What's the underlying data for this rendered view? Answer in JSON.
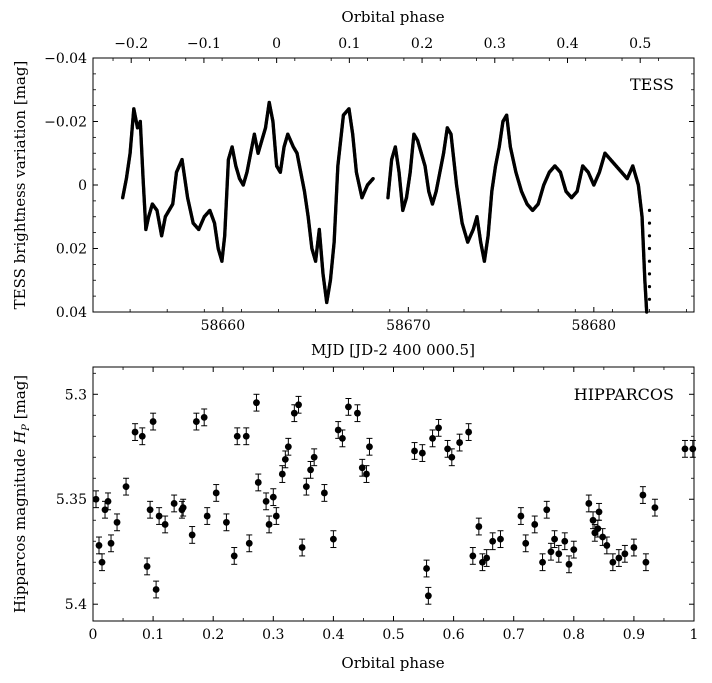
{
  "chart_data": [
    {
      "type": "scatter",
      "panel_label": "TESS",
      "xlabel": "MJD [JD-2 400 000.5]",
      "ylabel": "TESS brightness variation [mag]",
      "top_axis_label": "Orbital phase",
      "xlim": [
        58653.0,
        58685.4
      ],
      "ylim": [
        0.04,
        -0.04
      ],
      "y_inverted": true,
      "x_ticks": [
        58660,
        58670,
        58680
      ],
      "x_tick_labels": [
        "58660",
        "58670",
        "58680"
      ],
      "y_ticks": [
        -0.04,
        -0.02,
        0,
        0.02,
        0.04
      ],
      "y_tick_labels": [
        "−0.04",
        "−0.02",
        "0",
        "0.02",
        "0.04"
      ],
      "top_ticks": [
        -0.2,
        -0.1,
        0,
        0.1,
        0.2,
        0.3,
        0.4,
        0.5
      ],
      "top_tick_labels": [
        "−0.2",
        "−0.1",
        "0",
        "0.1",
        "0.2",
        "0.3",
        "0.4",
        "0.5"
      ],
      "top_phase_reference": {
        "mjd_at_phase_0": 58662.9,
        "mjd_at_phase_0.5": 58682.5
      },
      "series": [
        {
          "marker": "small-dot",
          "color": "#000000",
          "segments": [
            {
              "x": [
                58654.6,
                58654.8,
                58655.0,
                58655.2,
                58655.4,
                58655.55,
                58655.7,
                58655.85,
                58656.0,
                58656.2,
                58656.45,
                58656.7,
                58656.9,
                58657.1,
                58657.3,
                58657.5,
                58657.8,
                58658.1,
                58658.4,
                58658.7,
                58659.0,
                58659.3,
                58659.55,
                58659.75,
                58659.95,
                58660.1,
                58660.3,
                58660.5,
                58660.7,
                58660.9,
                58661.1,
                58661.3,
                58661.5,
                58661.7,
                58661.9,
                58662.1,
                58662.3,
                58662.5,
                58662.7,
                58662.9,
                58663.1,
                58663.3,
                58663.5,
                58663.8,
                58664.0,
                58664.2,
                58664.4,
                58664.6,
                58664.8,
                58665.0,
                58665.2,
                58665.4,
                58665.6,
                58665.8,
                58666.0,
                58666.2,
                58666.5,
                58666.8,
                58667.0,
                58667.2,
                58667.5,
                58667.8,
                58668.1
              ],
              "y": [
                0.004,
                -0.002,
                -0.01,
                -0.024,
                -0.018,
                -0.02,
                -0.002,
                0.014,
                0.01,
                0.006,
                0.008,
                0.016,
                0.01,
                0.008,
                0.006,
                -0.004,
                -0.008,
                0.004,
                0.012,
                0.014,
                0.01,
                0.008,
                0.012,
                0.02,
                0.024,
                0.016,
                -0.008,
                -0.012,
                -0.006,
                -0.002,
                0.0,
                -0.004,
                -0.01,
                -0.016,
                -0.01,
                -0.014,
                -0.018,
                -0.026,
                -0.02,
                -0.006,
                -0.004,
                -0.012,
                -0.016,
                -0.012,
                -0.01,
                -0.004,
                0.002,
                0.01,
                0.02,
                0.024,
                0.014,
                0.028,
                0.037,
                0.03,
                0.018,
                -0.006,
                -0.022,
                -0.024,
                -0.016,
                -0.004,
                0.004,
                0.0,
                -0.002
              ]
            },
            {
              "x": [
                58668.9,
                58669.1,
                58669.3,
                58669.5,
                58669.7,
                58669.9,
                58670.1,
                58670.3,
                58670.5,
                58670.7,
                58670.9,
                58671.1,
                58671.3,
                58671.5,
                58671.7,
                58671.9,
                58672.1,
                58672.3,
                58672.6,
                58672.9,
                58673.2,
                58673.5,
                58673.7,
                58673.9,
                58674.1,
                58674.3,
                58674.5,
                58674.7,
                58674.9,
                58675.1,
                58675.3,
                58675.5,
                58675.8,
                58676.1,
                58676.4,
                58676.7,
                58677.0,
                58677.3,
                58677.6,
                58677.9,
                58678.2,
                58678.5,
                58678.8,
                58679.1,
                58679.4,
                58679.7,
                58680.0,
                58680.3,
                58680.6,
                58680.9,
                58681.2,
                58681.5,
                58681.8,
                58682.1,
                58682.4,
                58682.6,
                58682.75,
                58682.85
              ],
              "y": [
                0.004,
                -0.008,
                -0.012,
                -0.004,
                0.008,
                0.004,
                -0.004,
                -0.016,
                -0.014,
                -0.01,
                -0.006,
                0.002,
                0.006,
                0.002,
                -0.004,
                -0.01,
                -0.018,
                -0.016,
                0.0,
                0.012,
                0.018,
                0.014,
                0.01,
                0.018,
                0.024,
                0.016,
                0.002,
                -0.006,
                -0.012,
                -0.02,
                -0.022,
                -0.012,
                -0.004,
                0.002,
                0.006,
                0.008,
                0.006,
                0.0,
                -0.004,
                -0.006,
                -0.004,
                0.002,
                0.004,
                0.002,
                -0.006,
                -0.004,
                0.0,
                -0.004,
                -0.01,
                -0.008,
                -0.006,
                -0.004,
                -0.002,
                -0.006,
                0.0,
                0.01,
                0.03,
                0.04
              ]
            },
            {
              "x": [
                58683.0,
                58683.0,
                58683.0,
                58683.0,
                58683.0,
                58683.0,
                58683.0,
                58683.0
              ],
              "y": [
                0.008,
                0.012,
                0.016,
                0.02,
                0.024,
                0.028,
                0.032,
                0.036
              ]
            }
          ]
        }
      ]
    },
    {
      "type": "scatter",
      "panel_label": "HIPPARCOS",
      "xlabel": "Orbital phase",
      "ylabel": "Hipparcos magnitude H_P [mag]",
      "ylabel_main": "Hipparcos magnitude ",
      "ylabel_var": "H",
      "ylabel_sub": "P",
      "ylabel_unit": " [mag]",
      "xlim": [
        0,
        1
      ],
      "ylim": [
        5.408,
        5.287
      ],
      "y_inverted": true,
      "x_ticks": [
        0,
        0.1,
        0.2,
        0.3,
        0.4,
        0.5,
        0.6,
        0.7,
        0.8,
        0.9,
        1
      ],
      "x_tick_labels": [
        "0",
        "0.1",
        "0.2",
        "0.3",
        "0.4",
        "0.5",
        "0.6",
        "0.7",
        "0.8",
        "0.9",
        "1"
      ],
      "y_ticks": [
        5.3,
        5.35,
        5.4
      ],
      "y_tick_labels": [
        "5.3",
        "5.35",
        "5.4"
      ],
      "series": [
        {
          "marker": "filled-circle-with-errorbar",
          "color": "#000000",
          "error": 0.004,
          "x": [
            0.005,
            0.01,
            0.015,
            0.02,
            0.025,
            0.03,
            0.04,
            0.055,
            0.07,
            0.082,
            0.09,
            0.095,
            0.1,
            0.105,
            0.11,
            0.12,
            0.135,
            0.148,
            0.15,
            0.165,
            0.172,
            0.185,
            0.19,
            0.205,
            0.222,
            0.235,
            0.24,
            0.255,
            0.26,
            0.272,
            0.275,
            0.288,
            0.293,
            0.3,
            0.305,
            0.315,
            0.32,
            0.325,
            0.335,
            0.342,
            0.348,
            0.355,
            0.362,
            0.368,
            0.385,
            0.4,
            0.408,
            0.415,
            0.425,
            0.44,
            0.448,
            0.455,
            0.46,
            0.535,
            0.548,
            0.555,
            0.558,
            0.565,
            0.575,
            0.59,
            0.597,
            0.61,
            0.625,
            0.632,
            0.642,
            0.648,
            0.655,
            0.665,
            0.678,
            0.712,
            0.72,
            0.735,
            0.748,
            0.755,
            0.762,
            0.768,
            0.775,
            0.785,
            0.792,
            0.8,
            0.825,
            0.832,
            0.835,
            0.84,
            0.842,
            0.848,
            0.855,
            0.865,
            0.875,
            0.885,
            0.9,
            0.915,
            0.92,
            0.935,
            0.985,
            0.998
          ],
          "y": [
            5.35,
            5.372,
            5.38,
            5.355,
            5.351,
            5.371,
            5.361,
            5.344,
            5.318,
            5.32,
            5.382,
            5.355,
            5.313,
            5.393,
            5.358,
            5.362,
            5.352,
            5.355,
            5.354,
            5.367,
            5.313,
            5.311,
            5.358,
            5.347,
            5.361,
            5.377,
            5.32,
            5.32,
            5.371,
            5.304,
            5.342,
            5.351,
            5.362,
            5.349,
            5.358,
            5.338,
            5.331,
            5.325,
            5.309,
            5.305,
            5.373,
            5.344,
            5.336,
            5.33,
            5.347,
            5.369,
            5.317,
            5.321,
            5.306,
            5.309,
            5.335,
            5.338,
            5.325,
            5.327,
            5.328,
            5.383,
            5.396,
            5.321,
            5.316,
            5.326,
            5.33,
            5.323,
            5.318,
            5.377,
            5.363,
            5.38,
            5.378,
            5.37,
            5.369,
            5.358,
            5.371,
            5.362,
            5.38,
            5.355,
            5.375,
            5.369,
            5.376,
            5.37,
            5.381,
            5.374,
            5.352,
            5.36,
            5.366,
            5.364,
            5.356,
            5.368,
            5.372,
            5.38,
            5.378,
            5.376,
            5.373,
            5.348,
            5.38,
            5.354,
            5.326,
            5.326
          ]
        }
      ]
    }
  ]
}
